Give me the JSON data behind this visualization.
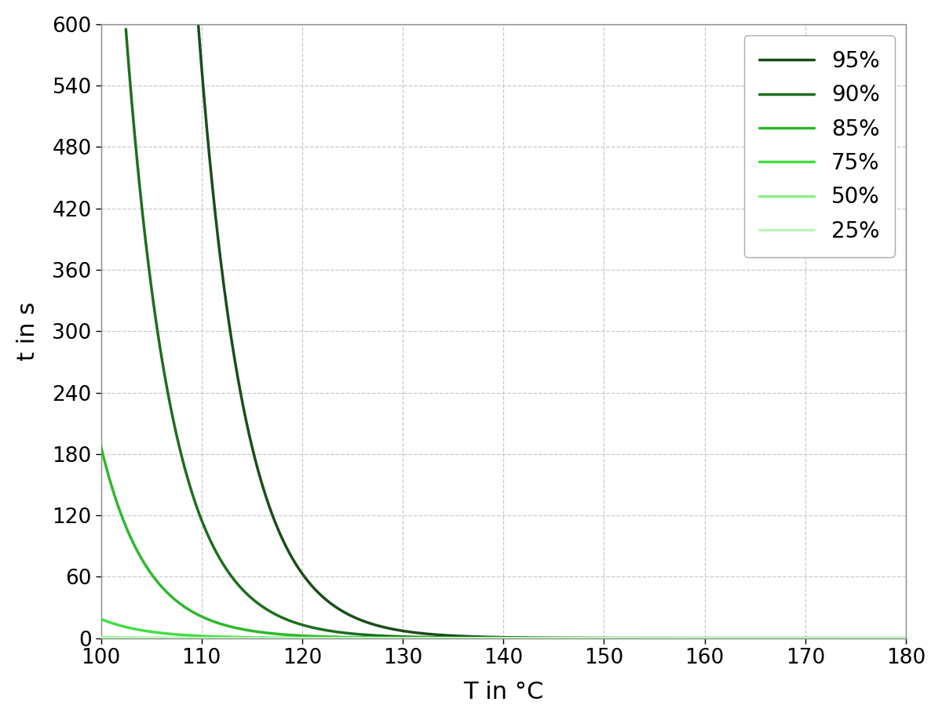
{
  "title": "",
  "xlabel": "T in °C",
  "ylabel": "t in s",
  "xlim": [
    100,
    180
  ],
  "ylim": [
    0,
    600
  ],
  "xticks": [
    100,
    110,
    120,
    130,
    140,
    150,
    160,
    170,
    180
  ],
  "yticks": [
    0,
    60,
    120,
    180,
    240,
    300,
    360,
    420,
    480,
    540,
    600
  ],
  "curves": [
    {
      "label": "95%",
      "color": "#1a4d1a",
      "linewidth": 2.5,
      "A": 14500000000000.0,
      "B": 0.218
    },
    {
      "label": "90%",
      "color": "#1e6e1e",
      "linewidth": 2.5,
      "A": 3000000000000.0,
      "B": 0.218
    },
    {
      "label": "85%",
      "color": "#2eb82e",
      "linewidth": 2.5,
      "A": 550000000000.0,
      "B": 0.218
    },
    {
      "label": "75%",
      "color": "#44dd44",
      "linewidth": 2.5,
      "A": 55000000000.0,
      "B": 0.218
    },
    {
      "label": "50%",
      "color": "#88ee88",
      "linewidth": 2.5,
      "A": 2800000000.0,
      "B": 0.218
    },
    {
      "label": "25%",
      "color": "#bbf5bb",
      "linewidth": 2.5,
      "A": 140000000.0,
      "B": 0.218
    }
  ],
  "background_color": "#ffffff",
  "grid_color": "#c8c8c8",
  "grid_linestyle": "--",
  "grid_linewidth": 0.9,
  "legend_fontsize": 20,
  "axis_label_fontsize": 22,
  "tick_fontsize": 19,
  "figsize": [
    12.0,
    9.18
  ],
  "dpi": 100
}
